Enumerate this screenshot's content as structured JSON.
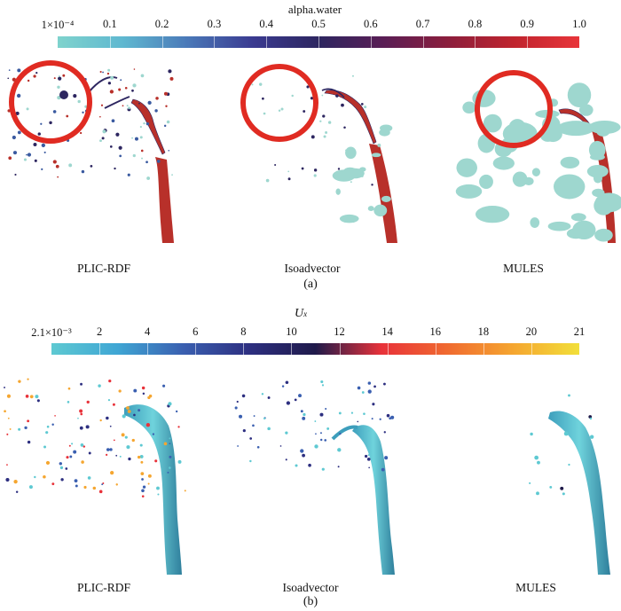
{
  "figure_a": {
    "colorbar": {
      "title": "alpha.water",
      "tick_labels": [
        "1×10⁻⁴",
        "0.1",
        "0.2",
        "0.3",
        "0.4",
        "0.5",
        "0.6",
        "0.7",
        "0.8",
        "0.9",
        "1.0"
      ],
      "colors": [
        "#7fd3cd",
        "#5fb8d0",
        "#4a78b8",
        "#3a3a90",
        "#2d2660",
        "#5a1e55",
        "#8c1e3c",
        "#c0242e",
        "#e8353a"
      ]
    },
    "methods": [
      "PLIC-RDF",
      "Isoadvector",
      "MULES"
    ],
    "caption": "(a)",
    "highlight_color": "#e02b22",
    "droplet_color": "#9ed7cf",
    "sheet_color": "#b8302a"
  },
  "figure_b": {
    "colorbar": {
      "title_main": "U",
      "title_sub": "x",
      "tick_labels": [
        "2.1×10⁻³",
        "2",
        "4",
        "6",
        "8",
        "10",
        "12",
        "14",
        "16",
        "18",
        "20",
        "21"
      ],
      "colors": [
        "#5ec9d2",
        "#3fa6d4",
        "#3a5fb0",
        "#2d2f80",
        "#1f1a4a",
        "#e8323a",
        "#f06a30",
        "#f5a630",
        "#f2df3a"
      ]
    },
    "methods": [
      "PLIC-RDF",
      "Isoadvector",
      "MULES"
    ],
    "caption": "(b)",
    "jet_color": "#5cc6d2"
  }
}
